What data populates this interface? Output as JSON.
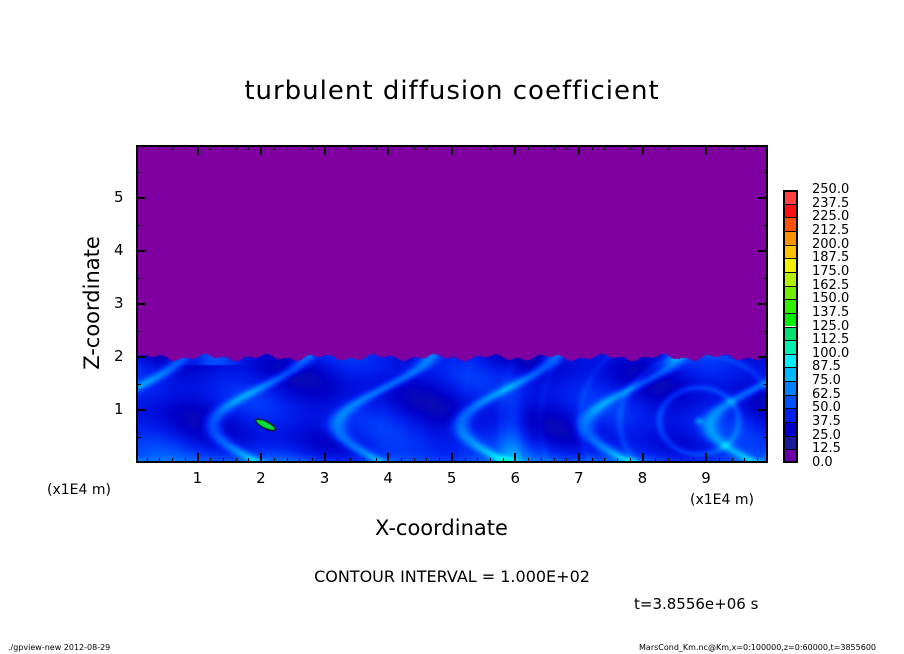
{
  "chart_data": {
    "type": "heatmap",
    "title": "turbulent diffusion coefficient",
    "xlabel": "X-coordinate",
    "ylabel": "Z-coordinate",
    "x_unit_label": "(x1E4 m)",
    "xlim": [
      0,
      10
    ],
    "ylim": [
      0,
      6
    ],
    "x_ticks": [
      "1",
      "2",
      "3",
      "4",
      "5",
      "6",
      "7",
      "8",
      "9"
    ],
    "y_ticks": [
      "1",
      "2",
      "3",
      "4",
      "5"
    ],
    "colorbar": {
      "levels": [
        "0.0",
        "12.5",
        "25.0",
        "37.5",
        "50.0",
        "62.5",
        "75.0",
        "87.5",
        "100.0",
        "112.5",
        "125.0",
        "137.5",
        "150.0",
        "162.5",
        "175.0",
        "187.5",
        "200.0",
        "212.5",
        "225.0",
        "237.5",
        "250.0"
      ],
      "colors": [
        "#6a00a8",
        "#1a1a9a",
        "#0000c8",
        "#0020f0",
        "#0050ff",
        "#0080ff",
        "#00b8ff",
        "#00f0ff",
        "#00f0b0",
        "#00e070",
        "#00f000",
        "#30f000",
        "#70f000",
        "#b0f000",
        "#f0f000",
        "#ffc000",
        "#ff9000",
        "#ff5000",
        "#ff1010",
        "#ff4040",
        "#ff8080"
      ]
    },
    "field_description_values": {
      "above_z2": 0.0,
      "boundary_z": 2.0
    }
  },
  "contour_interval": "CONTOUR INTERVAL = 1.000E+02",
  "time_label": "t=3.8556e+06 s",
  "footer_left": "./gpview-new  2012-08-29",
  "footer_right": "MarsCond_Km.nc@Km,x=0:100000,z=0:60000,t=3855600",
  "colors": {
    "background_field": "#7f00a0"
  }
}
